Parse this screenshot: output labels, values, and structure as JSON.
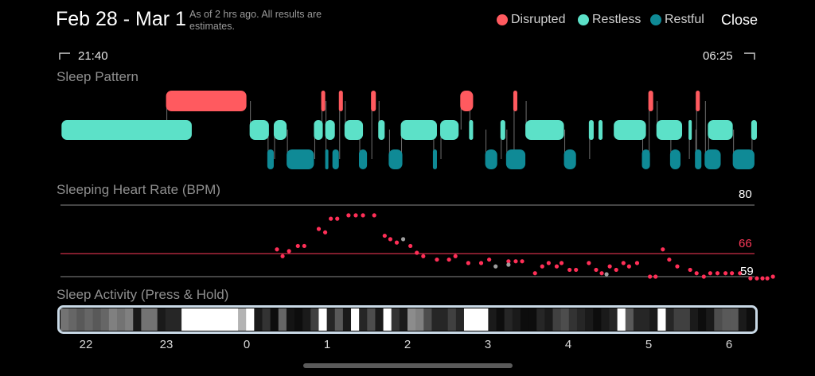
{
  "header": {
    "title": "Feb 28 - Mar 1",
    "subtitle": "As of 2 hrs ago. All results are estimates.",
    "close_label": "Close"
  },
  "legend": [
    {
      "label": "Disrupted",
      "color": "#FF5A5F"
    },
    {
      "label": "Restless",
      "color": "#5CE1C8"
    },
    {
      "label": "Restful",
      "color": "#0F8A96"
    }
  ],
  "time_range": {
    "start": "21:40",
    "end": "06:25"
  },
  "sleep_pattern": {
    "label": "Sleep Pattern"
  },
  "heart_rate": {
    "label": "Sleeping Heart Rate (BPM)",
    "ref_lines": {
      "max": "80",
      "avg": "66",
      "min": "59"
    }
  },
  "activity": {
    "label": "Sleep Activity (Press & Hold)"
  },
  "time_axis": [
    "22",
    "23",
    "0",
    "1",
    "2",
    "3",
    "4",
    "5",
    "6"
  ],
  "chart_data": [
    {
      "type": "timeline",
      "title": "Sleep Pattern",
      "x_range_hours": [
        21.667,
        30.417
      ],
      "series": [
        {
          "name": "Disrupted",
          "color": "#FF5A5F",
          "segments": [
            [
              22.98,
              23.98
            ],
            [
              24.91,
              24.96
            ],
            [
              25.13,
              25.18
            ],
            [
              25.53,
              25.59
            ],
            [
              26.64,
              26.8
            ],
            [
              27.3,
              27.35
            ],
            [
              28.98,
              29.04
            ],
            [
              29.57,
              29.62
            ]
          ]
        },
        {
          "name": "Restless",
          "color": "#5CE1C8",
          "segments": [
            [
              21.68,
              23.3
            ],
            [
              24.02,
              24.26
            ],
            [
              24.32,
              24.48
            ],
            [
              24.82,
              24.93
            ],
            [
              24.96,
              25.08
            ],
            [
              25.2,
              25.43
            ],
            [
              25.62,
              25.7
            ],
            [
              25.9,
              26.35
            ],
            [
              26.39,
              26.62
            ],
            [
              26.75,
              26.8
            ],
            [
              27.14,
              27.2
            ],
            [
              27.45,
              27.93
            ],
            [
              28.24,
              28.3
            ],
            [
              28.36,
              28.41
            ],
            [
              28.55,
              28.95
            ],
            [
              29.08,
              29.4
            ],
            [
              29.48,
              29.52
            ],
            [
              29.72,
              30.03
            ],
            [
              30.26,
              30.33
            ]
          ]
        },
        {
          "name": "Restful",
          "color": "#0F8A96",
          "segments": [
            [
              24.24,
              24.32
            ],
            [
              24.48,
              24.82
            ],
            [
              24.96,
              24.98
            ],
            [
              25.05,
              25.13
            ],
            [
              25.38,
              25.48
            ],
            [
              25.75,
              25.92
            ],
            [
              26.3,
              26.35
            ],
            [
              26.95,
              27.1
            ],
            [
              27.21,
              27.45
            ],
            [
              27.93,
              28.08
            ],
            [
              28.9,
              29.0
            ],
            [
              29.25,
              29.38
            ],
            [
              29.56,
              29.64
            ],
            [
              29.68,
              29.88
            ],
            [
              30.03,
              30.3
            ]
          ]
        }
      ]
    },
    {
      "type": "scatter",
      "title": "Sleeping Heart Rate (BPM)",
      "ylabel": "BPM",
      "ylim": [
        57,
        82
      ],
      "reference_lines": [
        80,
        66,
        59
      ],
      "series": [
        {
          "name": "heart rate",
          "color": "#FF2F57",
          "x": [
            24.36,
            24.43,
            24.51,
            24.62,
            24.7,
            24.88,
            24.96,
            25.03,
            25.11,
            25.25,
            25.34,
            25.43,
            25.57,
            25.7,
            25.77,
            25.85,
            26.02,
            26.1,
            26.18,
            26.35,
            26.5,
            26.58,
            26.74,
            26.9,
            27.0,
            27.24,
            27.33,
            27.41,
            27.57,
            27.66,
            27.74,
            27.84,
            27.9,
            28.0,
            28.08,
            28.24,
            28.33,
            28.4,
            28.5,
            28.58,
            28.67,
            28.74,
            28.84,
            29.0,
            29.07,
            29.16,
            29.24,
            29.34,
            29.5,
            29.58,
            29.67,
            29.75,
            29.84,
            29.94,
            30.02,
            30.12,
            30.25,
            30.33,
            30.4,
            30.46,
            30.53
          ],
          "y": [
            67,
            65,
            66.5,
            68,
            68,
            73,
            72,
            76,
            76,
            77,
            77,
            77,
            77,
            71,
            70,
            69,
            68,
            66,
            65,
            64,
            64,
            65,
            63,
            63,
            64,
            63.5,
            63.5,
            63.5,
            60,
            62,
            63,
            62,
            63,
            61,
            61,
            63,
            61,
            60,
            62,
            61,
            63,
            62,
            63,
            59,
            59,
            67,
            64,
            62,
            61,
            60,
            59,
            60,
            60,
            60,
            60,
            60,
            58.5,
            58.5,
            58.5,
            58.5,
            59
          ]
        },
        {
          "name": "outlier",
          "color": "#9E9E9E",
          "x": [
            25.93,
            27.08,
            27.24,
            28.46
          ],
          "y": [
            70,
            62,
            62.5,
            59.7
          ]
        }
      ]
    },
    {
      "type": "heatmap",
      "title": "Sleep Activity (Press & Hold)",
      "x_range_hours": [
        21.667,
        30.417
      ],
      "levels": [
        0.45,
        0.4,
        0.35,
        0.4,
        0.35,
        0.4,
        0.5,
        0.45,
        0.5,
        0.1,
        0.45,
        0.45,
        0.1,
        0.15,
        0.15,
        1,
        1,
        1,
        1,
        1,
        1,
        1,
        0.7,
        1,
        0.1,
        0.2,
        0.05,
        0.4,
        0.08,
        0.05,
        0.1,
        0.25,
        1,
        0.15,
        0.35,
        0.1,
        1,
        0.15,
        0.3,
        0.1,
        1,
        0.2,
        0.1,
        0.55,
        0.5,
        0.3,
        0.15,
        0.15,
        0.25,
        0.15,
        1,
        1,
        1,
        0.1,
        0.05,
        0.15,
        0.1,
        0.05,
        0.05,
        0.15,
        0.1,
        0.25,
        0.3,
        0.2,
        0.15,
        0.1,
        0.05,
        0.1,
        0.15,
        1,
        0.35,
        0.15,
        0.15,
        0.1,
        1,
        0.15,
        0.25,
        0.25,
        0.1,
        0.05,
        0.1,
        0.3,
        0.35,
        0.35,
        0.1,
        0.05
      ]
    }
  ]
}
